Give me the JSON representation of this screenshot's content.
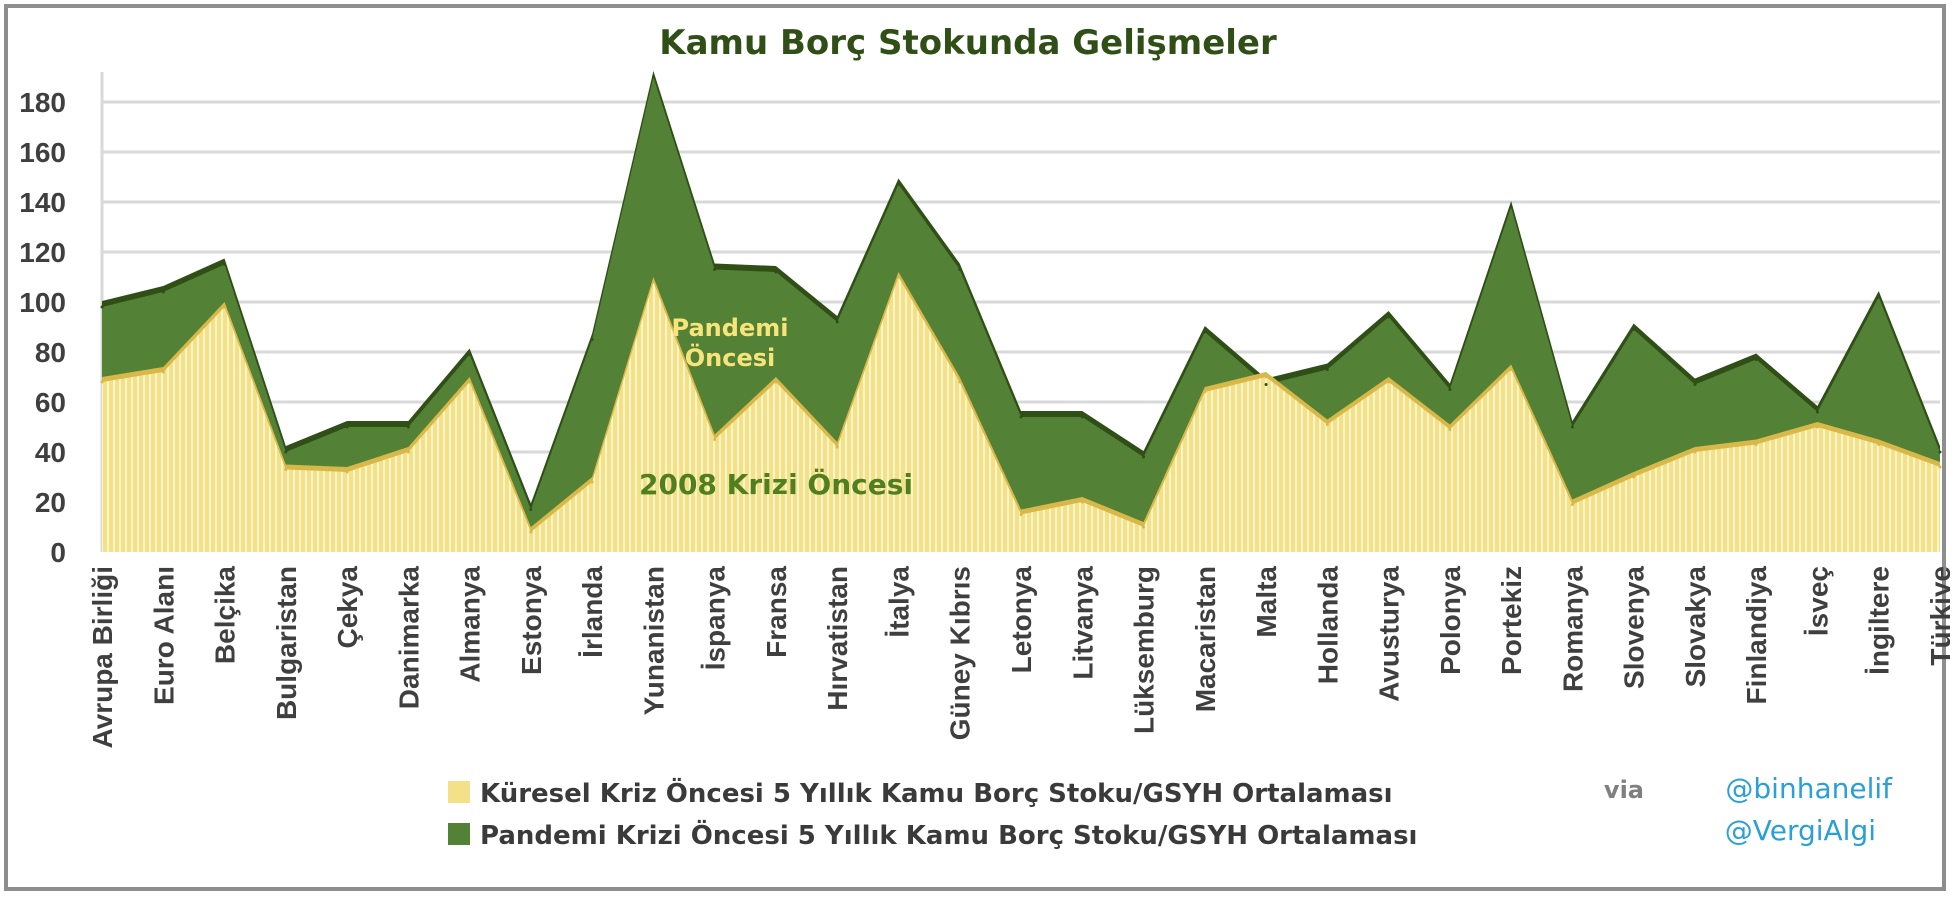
{
  "colors": {
    "yellow_area": "#f5e08a",
    "yellow_stripe": "#fdf6c8",
    "yellow_edge": "#d9b84a",
    "green_area": "#538135",
    "green_edge": "#2f4f16",
    "grid": "#d9d9d9",
    "title": "#2f4f16",
    "credit": "#2a9fd8"
  },
  "chart_data": {
    "type": "area",
    "title": "Kamu Borç Stokunda Gelişmeler",
    "xlabel": "",
    "ylabel": "",
    "ylim": [
      0,
      200
    ],
    "yticks": [
      0,
      20,
      40,
      60,
      80,
      100,
      120,
      140,
      160,
      180
    ],
    "grid": true,
    "legend_position": "bottom",
    "categories": [
      "Avrupa Birliği",
      "Euro Alanı",
      "Belçika",
      "Bulgaristan",
      "Çekya",
      "Danimarka",
      "Almanya",
      "Estonya",
      "İrlanda",
      "Yunanistan",
      "İspanya",
      "Fransa",
      "Hırvatistan",
      "İtalya",
      "Güney Kıbrıs",
      "Letonya",
      "Litvanya",
      "Lüksemburg",
      "Macaristan",
      "Malta",
      "Hollanda",
      "Avusturya",
      "Polonya",
      "Portekiz",
      "Romanya",
      "Slovenya",
      "Slovakya",
      "Finlandiya",
      "İsveç",
      "İngiltere",
      "Türkiye"
    ],
    "series": [
      {
        "name": "Küresel Kriz Öncesi 5 Yıllık Kamu Borç Stoku/GSYH Ortalaması",
        "color": "#f5e08a",
        "values": [
          68,
          72,
          98,
          33,
          32,
          40,
          68,
          8,
          28,
          108,
          45,
          68,
          42,
          110,
          68,
          15,
          20,
          10,
          64,
          70,
          51,
          68,
          49,
          73,
          19,
          30,
          40,
          43,
          50,
          43,
          34
        ]
      },
      {
        "name": "Pandemi Krizi Öncesi 5 Yıllık Kamu Borç Stoku/GSYH Ortalaması",
        "color": "#538135",
        "values": [
          98,
          104,
          115,
          40,
          50,
          50,
          79,
          17,
          85,
          190,
          113,
          112,
          92,
          147,
          113,
          54,
          54,
          38,
          88,
          67,
          73,
          94,
          65,
          138,
          50,
          89,
          67,
          77,
          56,
          102,
          40
        ]
      }
    ],
    "annotations": [
      {
        "text_line1": "Pandemi",
        "text_line2": "Öncesi"
      },
      {
        "text": "2008 Krizi Öncesi"
      }
    ]
  },
  "credit": {
    "via": "via",
    "handle1": "@binhanelif",
    "handle2": "@VergiAlgi"
  }
}
